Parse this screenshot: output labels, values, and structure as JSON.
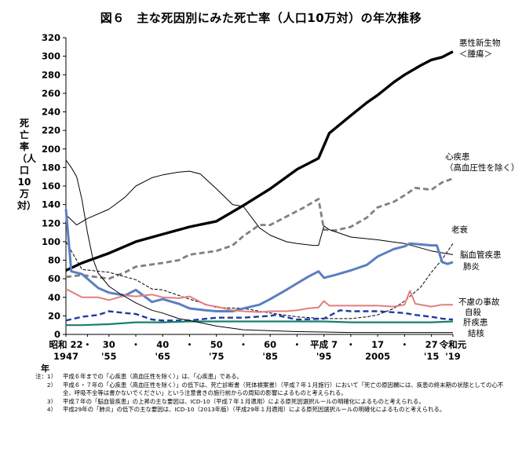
{
  "title": "図６　主な死因別にみた死亡率（人口10万対）の年次推移",
  "chart_data": {
    "type": "line",
    "title": "図６　主な死因別にみた死亡率（人口10万対）の年次推移",
    "ylabel": "死亡率（人口10万対）",
    "ylim": [
      0,
      320
    ],
    "yticks": [
      0,
      20,
      40,
      60,
      80,
      100,
      120,
      140,
      160,
      180,
      200,
      220,
      240,
      260,
      280,
      300,
      320
    ],
    "xlim": [
      1947,
      2019
    ],
    "x_ticks": [
      {
        "x": 1947,
        "top": "昭和 22",
        "bottom": "1947"
      },
      {
        "x": 1951,
        "top": "・",
        "bottom": ""
      },
      {
        "x": 1955,
        "top": "30",
        "bottom": "'55"
      },
      {
        "x": 1960,
        "top": "・",
        "bottom": ""
      },
      {
        "x": 1965,
        "top": "40",
        "bottom": "'65"
      },
      {
        "x": 1970,
        "top": "・",
        "bottom": ""
      },
      {
        "x": 1975,
        "top": "50",
        "bottom": "'75"
      },
      {
        "x": 1980,
        "top": "・",
        "bottom": ""
      },
      {
        "x": 1985,
        "top": "60",
        "bottom": "'85"
      },
      {
        "x": 1990,
        "top": "・",
        "bottom": ""
      },
      {
        "x": 1995,
        "top": "平成 7",
        "bottom": "'95"
      },
      {
        "x": 2000,
        "top": "・",
        "bottom": ""
      },
      {
        "x": 2005,
        "top": "17",
        "bottom": "2005"
      },
      {
        "x": 2010,
        "top": "・",
        "bottom": ""
      },
      {
        "x": 2015,
        "top": "27",
        "bottom": "'15"
      },
      {
        "x": 2019,
        "top": "令和元",
        "bottom": "'19"
      }
    ],
    "x_unit": "年",
    "series": [
      {
        "name": "悪性新生物＜腫瘍＞",
        "label_lines": [
          "悪性新生物",
          "＜腫瘍＞"
        ],
        "color": "#000000",
        "dash": "solid",
        "width": 3.4,
        "points": [
          [
            1947,
            69
          ],
          [
            1950,
            77
          ],
          [
            1955,
            87.5
          ],
          [
            1960,
            100
          ],
          [
            1965,
            108
          ],
          [
            1970,
            116
          ],
          [
            1975,
            122
          ],
          [
            1980,
            139
          ],
          [
            1985,
            157
          ],
          [
            1990,
            178
          ],
          [
            1994,
            190
          ],
          [
            1996,
            217
          ],
          [
            2000,
            236
          ],
          [
            2003,
            250
          ],
          [
            2005,
            258
          ],
          [
            2008,
            272
          ],
          [
            2010,
            280
          ],
          [
            2013,
            290
          ],
          [
            2015,
            296
          ],
          [
            2017,
            299
          ],
          [
            2019,
            305
          ]
        ]
      },
      {
        "name": "心疾患（高血圧性を除く）",
        "label_lines": [
          "心疾患",
          "（高血圧性を除く）"
        ],
        "color": "#808080",
        "dash": "dash",
        "width": 2.8,
        "points": [
          [
            1947,
            62
          ],
          [
            1950,
            64
          ],
          [
            1955,
            60
          ],
          [
            1958,
            67
          ],
          [
            1960,
            73
          ],
          [
            1965,
            77
          ],
          [
            1968,
            80
          ],
          [
            1970,
            86
          ],
          [
            1975,
            90
          ],
          [
            1978,
            96
          ],
          [
            1980,
            106
          ],
          [
            1983,
            118
          ],
          [
            1985,
            118
          ],
          [
            1988,
            127
          ],
          [
            1991,
            136
          ],
          [
            1994,
            146
          ],
          [
            1995,
            113
          ],
          [
            1997,
            112
          ],
          [
            2000,
            116
          ],
          [
            2003,
            126
          ],
          [
            2005,
            137
          ],
          [
            2008,
            143
          ],
          [
            2010,
            150
          ],
          [
            2012,
            158
          ],
          [
            2015,
            156
          ],
          [
            2017,
            164
          ],
          [
            2019,
            168
          ]
        ]
      },
      {
        "name": "老衰",
        "label_lines": [
          "老衰"
        ],
        "color": "#000000",
        "dash": "dashfine",
        "width": 1.0,
        "points": [
          [
            1947,
            100
          ],
          [
            1950,
            70
          ],
          [
            1955,
            67
          ],
          [
            1960,
            59
          ],
          [
            1963,
            49
          ],
          [
            1965,
            48
          ],
          [
            1970,
            38
          ],
          [
            1975,
            29
          ],
          [
            1980,
            28
          ],
          [
            1985,
            23
          ],
          [
            1990,
            19
          ],
          [
            1995,
            17
          ],
          [
            2000,
            17
          ],
          [
            2003,
            19
          ],
          [
            2005,
            21
          ],
          [
            2008,
            28
          ],
          [
            2010,
            36
          ],
          [
            2013,
            51
          ],
          [
            2015,
            67
          ],
          [
            2017,
            81
          ],
          [
            2019,
            98
          ]
        ]
      },
      {
        "name": "脳血管疾患",
        "label_lines": [
          "脳血管疾患"
        ],
        "color": "#000000",
        "dash": "solid",
        "width": 1.0,
        "points": [
          [
            1947,
            129
          ],
          [
            1949,
            118
          ],
          [
            1951,
            125
          ],
          [
            1955,
            135
          ],
          [
            1958,
            148
          ],
          [
            1960,
            160
          ],
          [
            1963,
            169
          ],
          [
            1965,
            172
          ],
          [
            1968,
            175
          ],
          [
            1970,
            176
          ],
          [
            1972,
            173
          ],
          [
            1975,
            157
          ],
          [
            1978,
            140
          ],
          [
            1980,
            138
          ],
          [
            1983,
            115
          ],
          [
            1985,
            107
          ],
          [
            1988,
            100
          ],
          [
            1990,
            98
          ],
          [
            1993,
            96
          ],
          [
            1994,
            96
          ],
          [
            1995,
            117
          ],
          [
            1996,
            113
          ],
          [
            2000,
            105
          ],
          [
            2005,
            102
          ],
          [
            2010,
            98
          ],
          [
            2015,
            90
          ],
          [
            2017,
            88
          ],
          [
            2019,
            86
          ]
        ]
      },
      {
        "name": "肺炎",
        "label_lines": [
          "肺炎"
        ],
        "color": "#5b7fc0",
        "dash": "solid",
        "width": 3.0,
        "points": [
          [
            1947,
            135
          ],
          [
            1948,
            68
          ],
          [
            1950,
            65
          ],
          [
            1953,
            50
          ],
          [
            1955,
            45
          ],
          [
            1958,
            42
          ],
          [
            1960,
            48
          ],
          [
            1963,
            35
          ],
          [
            1965,
            38
          ],
          [
            1968,
            33
          ],
          [
            1970,
            28
          ],
          [
            1973,
            26
          ],
          [
            1975,
            25
          ],
          [
            1978,
            25
          ],
          [
            1980,
            28
          ],
          [
            1983,
            32
          ],
          [
            1985,
            38
          ],
          [
            1988,
            48
          ],
          [
            1990,
            55
          ],
          [
            1992,
            62
          ],
          [
            1994,
            68
          ],
          [
            1995,
            61
          ],
          [
            1997,
            64
          ],
          [
            2000,
            69
          ],
          [
            2003,
            75
          ],
          [
            2005,
            84
          ],
          [
            2008,
            92
          ],
          [
            2010,
            95
          ],
          [
            2011,
            98
          ],
          [
            2013,
            97
          ],
          [
            2015,
            96
          ],
          [
            2016,
            96
          ],
          [
            2017,
            78
          ],
          [
            2018,
            76
          ],
          [
            2019,
            78
          ]
        ]
      },
      {
        "name": "不慮の事故",
        "label_lines": [
          "不慮の事故"
        ],
        "color": "#e07f7f",
        "dash": "solid",
        "width": 2.0,
        "points": [
          [
            1947,
            49
          ],
          [
            1949,
            43
          ],
          [
            1950,
            40
          ],
          [
            1953,
            40
          ],
          [
            1955,
            37
          ],
          [
            1958,
            42
          ],
          [
            1960,
            41
          ],
          [
            1963,
            43
          ],
          [
            1965,
            40
          ],
          [
            1968,
            39
          ],
          [
            1970,
            41
          ],
          [
            1973,
            32
          ],
          [
            1975,
            30
          ],
          [
            1978,
            26
          ],
          [
            1980,
            25
          ],
          [
            1983,
            24
          ],
          [
            1985,
            25
          ],
          [
            1988,
            25
          ],
          [
            1990,
            26
          ],
          [
            1992,
            28
          ],
          [
            1994,
            29
          ],
          [
            1995,
            36
          ],
          [
            1996,
            31
          ],
          [
            2000,
            31
          ],
          [
            2003,
            31
          ],
          [
            2005,
            31
          ],
          [
            2008,
            30
          ],
          [
            2010,
            32
          ],
          [
            2011,
            47
          ],
          [
            2012,
            33
          ],
          [
            2015,
            30
          ],
          [
            2017,
            32
          ],
          [
            2019,
            32
          ]
        ]
      },
      {
        "name": "自殺",
        "label_lines": [
          "自殺"
        ],
        "color": "#1f3ca0",
        "dash": "dash",
        "width": 2.4,
        "points": [
          [
            1947,
            15
          ],
          [
            1950,
            19
          ],
          [
            1953,
            21
          ],
          [
            1955,
            25
          ],
          [
            1958,
            23
          ],
          [
            1960,
            22
          ],
          [
            1963,
            16
          ],
          [
            1965,
            15
          ],
          [
            1968,
            15
          ],
          [
            1970,
            15
          ],
          [
            1975,
            18
          ],
          [
            1980,
            18
          ],
          [
            1985,
            20
          ],
          [
            1986,
            21
          ],
          [
            1990,
            16
          ],
          [
            1995,
            17
          ],
          [
            1998,
            26
          ],
          [
            2000,
            25
          ],
          [
            2005,
            25
          ],
          [
            2010,
            23
          ],
          [
            2012,
            21
          ],
          [
            2015,
            19
          ],
          [
            2017,
            17
          ],
          [
            2019,
            16
          ]
        ]
      },
      {
        "name": "肝疾患",
        "label_lines": [
          "肝疾患"
        ],
        "color": "#1b7f6b",
        "dash": "solid",
        "width": 2.2,
        "points": [
          [
            1947,
            10
          ],
          [
            1950,
            10
          ],
          [
            1955,
            11
          ],
          [
            1960,
            13
          ],
          [
            1965,
            13
          ],
          [
            1970,
            14
          ],
          [
            1975,
            14
          ],
          [
            1980,
            14
          ],
          [
            1985,
            14
          ],
          [
            1990,
            14
          ],
          [
            1995,
            14
          ],
          [
            2000,
            13
          ],
          [
            2005,
            13
          ],
          [
            2010,
            13
          ],
          [
            2015,
            13
          ],
          [
            2019,
            14
          ]
        ]
      },
      {
        "name": "結核",
        "label_lines": [
          "結核"
        ],
        "color": "#000000",
        "dash": "solid",
        "width": 1.0,
        "points": [
          [
            1947,
            188
          ],
          [
            1948,
            180
          ],
          [
            1949,
            170
          ],
          [
            1950,
            145
          ],
          [
            1951,
            110
          ],
          [
            1952,
            82
          ],
          [
            1953,
            66
          ],
          [
            1955,
            52
          ],
          [
            1957,
            44
          ],
          [
            1960,
            34
          ],
          [
            1963,
            26
          ],
          [
            1965,
            23
          ],
          [
            1968,
            17
          ],
          [
            1970,
            15
          ],
          [
            1975,
            9
          ],
          [
            1980,
            5
          ],
          [
            1985,
            4
          ],
          [
            1990,
            3
          ],
          [
            1995,
            2.5
          ],
          [
            2000,
            2
          ],
          [
            2005,
            2
          ],
          [
            2010,
            2
          ],
          [
            2015,
            2
          ],
          [
            2019,
            2
          ]
        ]
      }
    ],
    "legend": "direct labels at right end of lines"
  },
  "notes": [
    {
      "label": "注：1）",
      "text": "平成６年までの「心疾患（高血圧性を除く）」は、「心疾患」である。"
    },
    {
      "label": "2）",
      "text": "平成６・７年の「心疾患（高血圧性を除く）」の低下は、死亡診断書（死体検案書）（平成７年１月施行）において「死亡の原因欄には、疾患の終末期の状態としての心不全、呼吸不全等は書かないでください」という注意書きの施行前からの周知の影響によるものと考えられる。"
    },
    {
      "label": "3）",
      "text": "平成７年の「脳血管疾患」の上昇の主な要因は、ICD-10（平成７年１月適用）による原死因選択ルールの明確化によるものと考えられる。"
    },
    {
      "label": "4）",
      "text": "平成29年の「肺炎」の低下の主な要因は、ICD-10（2013年版）（平成29年１月適用）による原死因選択ルールの明確化によるものと考えられる。"
    }
  ]
}
